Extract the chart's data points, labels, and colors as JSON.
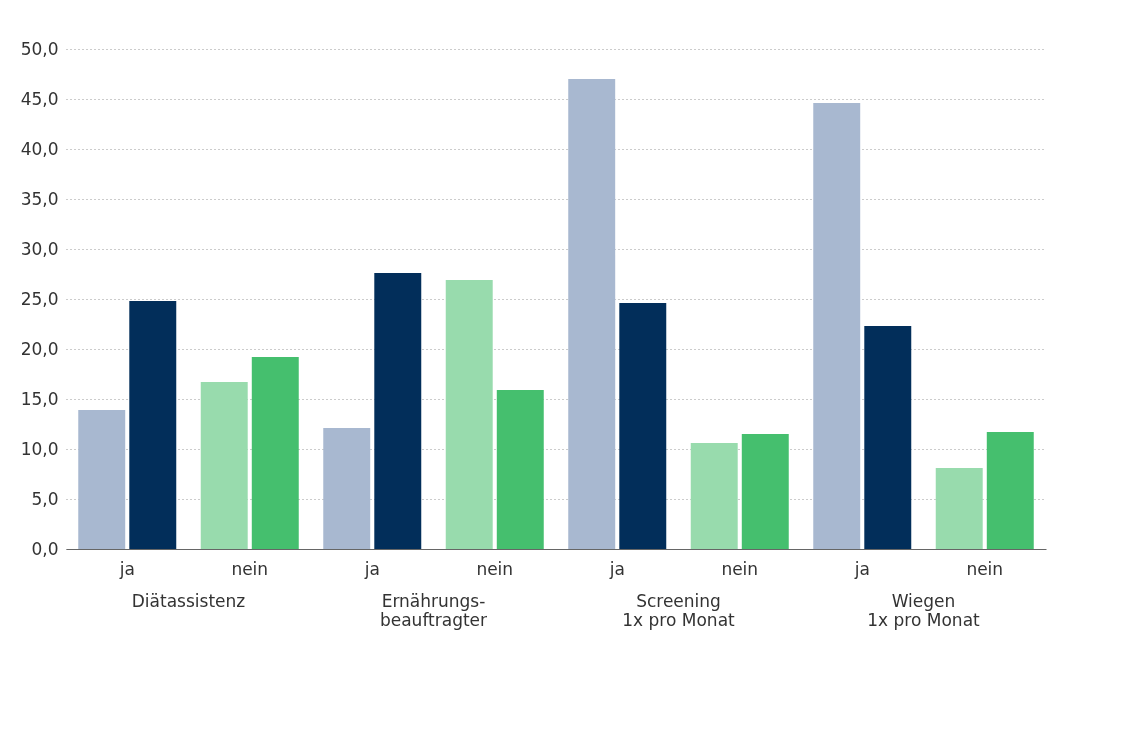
{
  "chart_data": {
    "type": "bar",
    "categories": [
      "ja",
      "nein",
      "ja",
      "nein",
      "ja",
      "nein",
      "ja",
      "nein"
    ],
    "series": [
      {
        "colors": [
          "#a8b8d0",
          "#98dbad",
          "#a8b8d0",
          "#98dbad",
          "#a8b8d0",
          "#98dbad",
          "#a8b8d0",
          "#98dbad"
        ],
        "values": [
          13.9,
          16.7,
          12.1,
          26.9,
          47.0,
          10.6,
          44.6,
          8.1
        ]
      },
      {
        "colors": [
          "#022e5a",
          "#45bf6e",
          "#022e5a",
          "#45bf6e",
          "#022e5a",
          "#45bf6e",
          "#022e5a",
          "#45bf6e"
        ],
        "values": [
          24.8,
          19.2,
          27.6,
          15.9,
          24.6,
          11.5,
          22.3,
          11.7
        ]
      }
    ],
    "ylim": [
      0,
      50
    ],
    "yticks": [
      {
        "value": 0,
        "label": "0,0"
      },
      {
        "value": 5,
        "label": "5,0"
      },
      {
        "value": 10,
        "label": "10,0"
      },
      {
        "value": 15,
        "label": "15,0"
      },
      {
        "value": 20,
        "label": "20,0"
      },
      {
        "value": 25,
        "label": "25,0"
      },
      {
        "value": 30,
        "label": "30,0"
      },
      {
        "value": 35,
        "label": "35,0"
      },
      {
        "value": 40,
        "label": "40,0"
      },
      {
        "value": 45,
        "label": "45,0"
      },
      {
        "value": 50,
        "label": "50,0"
      }
    ],
    "annotations": [
      "Diätassistenz",
      "Ernährungs-\nbeauftragter",
      "Screening\n1x pro Monat",
      "Wiegen\n1x pro Monat"
    ],
    "grid": "y"
  }
}
